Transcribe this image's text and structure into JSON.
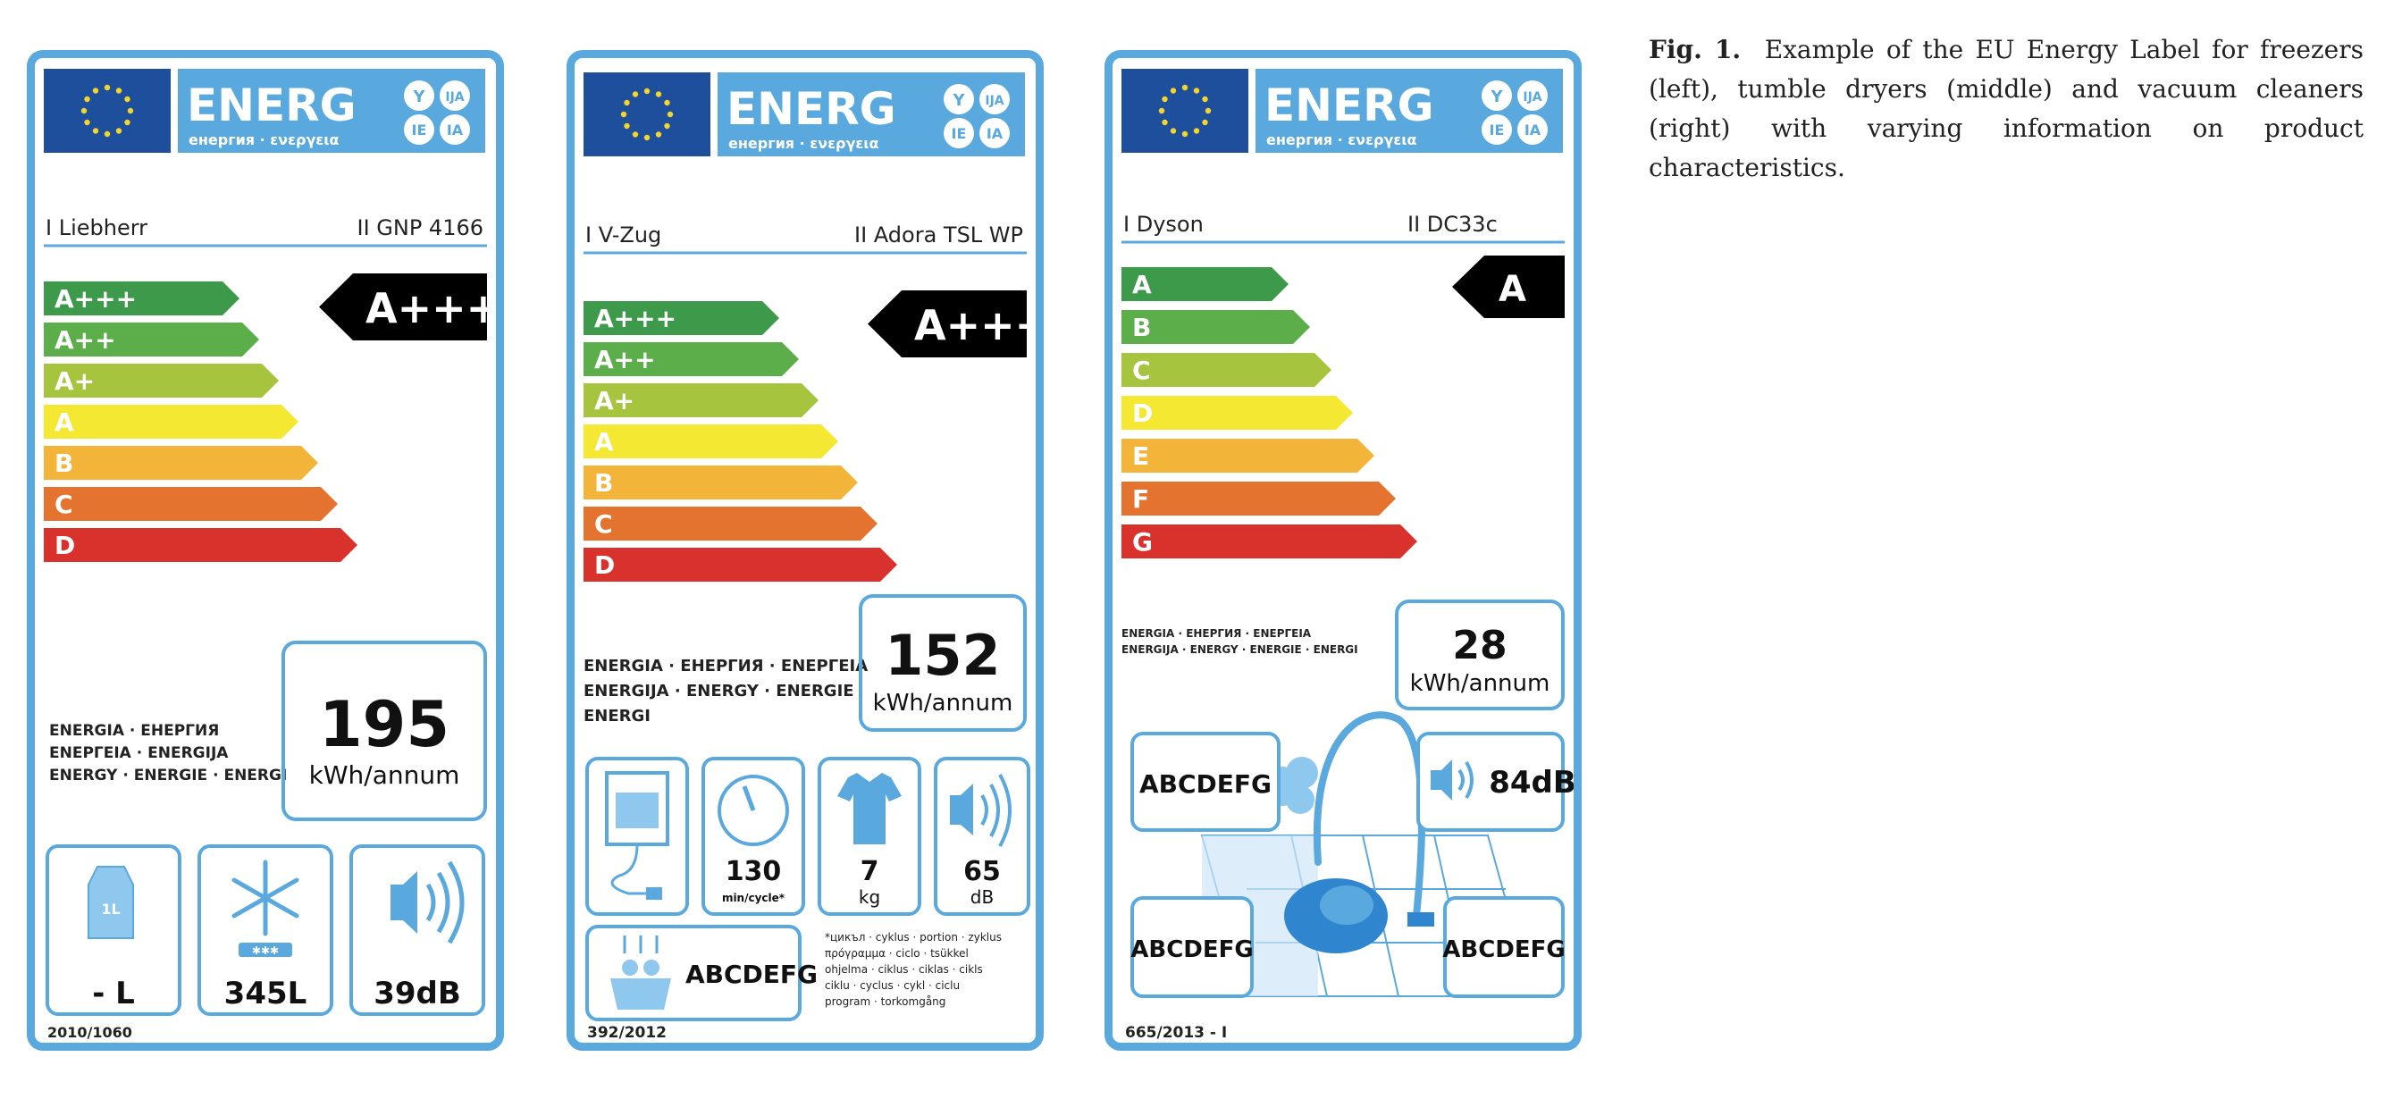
{
  "labels": [
    {
      "header": {
        "brand_word": "ENERG",
        "subtitle": "енергия · ενεργεια",
        "badges": [
          "Y",
          "IJA",
          "IE",
          "IA"
        ]
      },
      "supplier": "I Liebherr",
      "model": "II GNP 4166",
      "class_bars": [
        "A+++",
        "A++",
        "A+",
        "A",
        "B",
        "C",
        "D"
      ],
      "rating": "A+++",
      "energy_text": [
        "ENERGIA · ЕНЕРГИЯ",
        "ΕΝΕΡΓΕΙΑ · ENERGIJA",
        "ENERGY · ENERGIE · ENERGI"
      ],
      "consumption_value": "195",
      "consumption_unit": "kWh/annum",
      "icons": [
        {
          "icon": "milk-carton-icon",
          "inner": "1L",
          "value": "- L"
        },
        {
          "icon": "snowflake-icon",
          "inner": "✱✱✱",
          "value": "345L"
        },
        {
          "icon": "speaker-icon",
          "value": "39dB"
        }
      ],
      "regulation": "2010/1060"
    },
    {
      "header": {
        "brand_word": "ENERG",
        "subtitle": "енергия · ενεργεια",
        "badges": [
          "Y",
          "IJA",
          "IE",
          "IA"
        ]
      },
      "supplier": "I V-Zug",
      "model": "II Adora TSL WP",
      "class_bars": [
        "A+++",
        "A++",
        "A+",
        "A",
        "B",
        "C",
        "D"
      ],
      "rating": "A+++",
      "energy_text": [
        "ENERGIA · ЕНЕРГИЯ · ΕΝΕΡΓΕΙΑ",
        "ENERGIJA · ENERGY · ENERGIE",
        "ENERGI"
      ],
      "consumption_value": "152",
      "consumption_unit": "kWh/annum",
      "icons": [
        {
          "icon": "dryer-plug-icon"
        },
        {
          "icon": "timer-icon",
          "value": "130",
          "unit": "min/cycle*"
        },
        {
          "icon": "tshirt-icon",
          "value": "7",
          "unit": "kg"
        },
        {
          "icon": "speaker-icon",
          "value": "65",
          "unit": "dB"
        }
      ],
      "condensation_scale": "ABCDEFG",
      "footnote": [
        "*цикъл · cyklus · portion · zyklus",
        "πρόγραμμα · ciclo · tsükkel",
        "ohjelma · ciklus · ciklas · cikls",
        "ciklu · cyclus · cykl · ciclu",
        "program · torkomgång"
      ],
      "regulation": "392/2012"
    },
    {
      "header": {
        "brand_word": "ENERG",
        "subtitle": "енергия · ενεργεια",
        "badges": [
          "Y",
          "IJA",
          "IE",
          "IA"
        ]
      },
      "supplier": "I Dyson",
      "model": "II DC33c",
      "class_bars": [
        "A",
        "B",
        "C",
        "D",
        "E",
        "F",
        "G"
      ],
      "rating": "A",
      "energy_text": [
        "ENERGIA · ЕНЕРГИЯ · ΕΝΕΡΓΕΙΑ",
        "ENERGIJA · ENERGY · ENERGIE · ENERGI"
      ],
      "consumption_value": "28",
      "consumption_unit": "kWh/annum",
      "noise": "84dB",
      "dust_scale": "ABCDEFG",
      "carpet_scale": "ABCDEFG",
      "hard_floor_scale": "ABCDEFG",
      "regulation": "665/2013 - I"
    }
  ],
  "caption": {
    "label": "Fig. 1.",
    "text": "Example of the EU Energy Label for freezers (left), tumble dryers (middle) and vacuum cleaners (right) with varying information on product characteristics."
  },
  "colors": {
    "border": "#5aa9de",
    "eu_flag": "#1d4f9c",
    "header": "#5aa9de",
    "class_bars": [
      "#3d9a4b",
      "#5bae4a",
      "#a6c43e",
      "#f5e832",
      "#f2b53a",
      "#e57330",
      "#d9312b"
    ],
    "rating": "#000000"
  }
}
